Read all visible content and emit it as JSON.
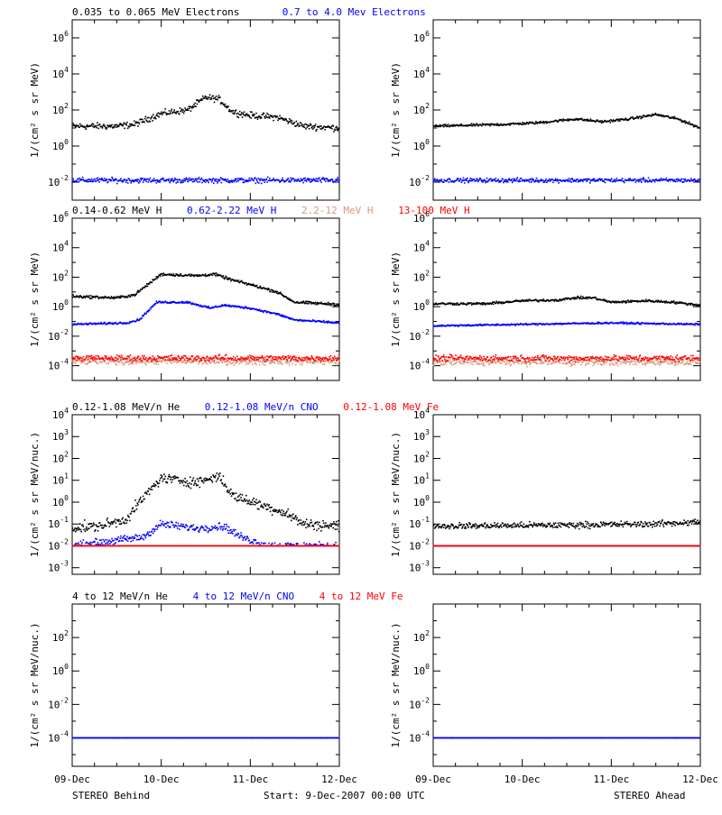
{
  "colors": {
    "black": "#000000",
    "blue": "#0000ff",
    "tan": "#d8987f",
    "red": "#ff0000"
  },
  "footer": {
    "left": "STEREO Behind",
    "center": "Start:  9-Dec-2007 00:00 UTC",
    "right": "STEREO Ahead"
  },
  "chart_data": [
    {
      "type": "scatter",
      "panel": "electrons-behind",
      "legend": [
        {
          "label": "0.035 to 0.065 MeV Electrons",
          "color": "#000000"
        },
        {
          "label": "0.7 to 4.0 Mev Electrons",
          "color": "#0000ff"
        }
      ],
      "ylabel": "1/(cm² s sr MeV)",
      "yscale": "log",
      "ylim": [
        0.001,
        10000000
      ],
      "ytick_exponents": [
        -2,
        0,
        2,
        4,
        6
      ],
      "x_ticks": [
        "09-Dec",
        "10-Dec",
        "11-Dec",
        "12-Dec"
      ],
      "x_range_days": [
        0,
        3
      ],
      "series": [
        {
          "name": "0.035 to 0.065 MeV Electrons",
          "color": "#000000",
          "x_days": [
            0,
            0.5,
            0.7,
            1.0,
            1.3,
            1.5,
            1.65,
            1.8,
            2.0,
            2.3,
            2.6,
            3.0
          ],
          "log10_y": [
            1.1,
            1.1,
            1.2,
            1.8,
            2.0,
            2.7,
            2.6,
            1.9,
            1.7,
            1.6,
            1.1,
            1.0
          ],
          "scatter": 0.15
        },
        {
          "name": "0.7 to 4.0 Mev Electrons",
          "color": "#0000ff",
          "x_days": [
            0,
            3
          ],
          "log10_y": [
            -1.9,
            -1.9
          ],
          "scatter": 0.12
        }
      ]
    },
    {
      "type": "scatter",
      "panel": "electrons-ahead",
      "ylabel": "1/(cm² s sr MeV)",
      "yscale": "log",
      "ylim": [
        0.001,
        10000000
      ],
      "ytick_exponents": [
        -2,
        0,
        2,
        4,
        6
      ],
      "x_ticks": [
        "09-Dec",
        "10-Dec",
        "11-Dec",
        "12-Dec"
      ],
      "x_range_days": [
        0,
        3
      ],
      "series": [
        {
          "name": "0.035 to 0.065 MeV Electrons",
          "color": "#000000",
          "x_days": [
            0,
            0.8,
            1.2,
            1.6,
            1.9,
            2.2,
            2.5,
            2.75,
            3.0
          ],
          "log10_y": [
            1.1,
            1.2,
            1.3,
            1.5,
            1.35,
            1.5,
            1.75,
            1.5,
            1.0
          ],
          "scatter": 0.06
        },
        {
          "name": "0.7 to 4.0 Mev Electrons",
          "color": "#0000ff",
          "x_days": [
            0,
            3
          ],
          "log10_y": [
            -1.9,
            -1.9
          ],
          "scatter": 0.1
        }
      ]
    },
    {
      "type": "scatter",
      "panel": "protons-behind",
      "legend": [
        {
          "label": "0.14-0.62 MeV H",
          "color": "#000000"
        },
        {
          "label": "0.62-2.22 MeV H",
          "color": "#0000ff"
        },
        {
          "label": "2.2-12 MeV H",
          "color": "#d8987f"
        },
        {
          "label": "13-100 MeV H",
          "color": "#ff0000"
        }
      ],
      "ylabel": "1/(cm² s sr MeV)",
      "yscale": "log",
      "ylim": [
        1e-05,
        1000000
      ],
      "ytick_exponents": [
        -4,
        -2,
        0,
        2,
        4,
        6
      ],
      "x_ticks": [
        "09-Dec",
        "10-Dec",
        "11-Dec",
        "12-Dec"
      ],
      "x_range_days": [
        0,
        3
      ],
      "series": [
        {
          "name": "0.14-0.62 MeV H",
          "color": "#000000",
          "x_days": [
            0,
            0.5,
            0.7,
            1.0,
            1.4,
            1.6,
            1.8,
            2.0,
            2.3,
            2.5,
            3.0
          ],
          "log10_y": [
            0.7,
            0.6,
            0.8,
            2.2,
            2.1,
            2.2,
            1.8,
            1.5,
            1.0,
            0.3,
            0.15
          ],
          "scatter": 0.08
        },
        {
          "name": "0.62-2.22 MeV H",
          "color": "#0000ff",
          "x_days": [
            0,
            0.6,
            0.75,
            0.95,
            1.3,
            1.55,
            1.7,
            2.0,
            2.3,
            2.5,
            3.0
          ],
          "log10_y": [
            -1.2,
            -1.1,
            -0.9,
            0.3,
            0.3,
            -0.1,
            0.1,
            -0.1,
            -0.5,
            -0.9,
            -1.1
          ],
          "scatter": 0.06
        },
        {
          "name": "2.2-12 MeV H",
          "color": "#d8987f",
          "x_days": [
            0,
            3
          ],
          "log10_y": [
            -3.7,
            -3.7
          ],
          "scatter": 0.2
        },
        {
          "name": "13-100 MeV H",
          "color": "#ff0000",
          "x_days": [
            0,
            3
          ],
          "log10_y": [
            -3.5,
            -3.5
          ],
          "scatter": 0.18
        }
      ]
    },
    {
      "type": "scatter",
      "panel": "protons-ahead",
      "ylabel": "1/(cm² s sr MeV)",
      "yscale": "log",
      "ylim": [
        1e-05,
        1000000
      ],
      "ytick_exponents": [
        -4,
        -2,
        0,
        2,
        4,
        6
      ],
      "x_ticks": [
        "09-Dec",
        "10-Dec",
        "11-Dec",
        "12-Dec"
      ],
      "x_range_days": [
        0,
        3
      ],
      "series": [
        {
          "name": "0.14-0.62 MeV H",
          "color": "#000000",
          "x_days": [
            0,
            0.6,
            1.0,
            1.4,
            1.6,
            1.8,
            2.0,
            2.4,
            2.7,
            3.0
          ],
          "log10_y": [
            0.2,
            0.2,
            0.4,
            0.45,
            0.6,
            0.6,
            0.3,
            0.4,
            0.3,
            0.1
          ],
          "scatter": 0.07
        },
        {
          "name": "0.62-2.22 MeV H",
          "color": "#0000ff",
          "x_days": [
            0,
            1.0,
            2.0,
            3.0
          ],
          "log10_y": [
            -1.3,
            -1.2,
            -1.1,
            -1.2
          ],
          "scatter": 0.05
        },
        {
          "name": "2.2-12 MeV H",
          "color": "#d8987f",
          "x_days": [
            0,
            3
          ],
          "log10_y": [
            -3.75,
            -3.75
          ],
          "scatter": 0.2
        },
        {
          "name": "13-100 MeV H",
          "color": "#ff0000",
          "x_days": [
            0,
            3
          ],
          "log10_y": [
            -3.5,
            -3.5
          ],
          "scatter": 0.18
        }
      ]
    },
    {
      "type": "scatter",
      "panel": "ions-low-behind",
      "legend": [
        {
          "label": "0.12-1.08 MeV/n He",
          "color": "#000000"
        },
        {
          "label": "0.12-1.08 MeV/n CNO",
          "color": "#0000ff"
        },
        {
          "label": "0.12-1.08 MeV Fe",
          "color": "#ff0000"
        }
      ],
      "ylabel": "1/(cm² s sr MeV/nuc.)",
      "yscale": "log",
      "ylim": [
        0.0005,
        10000
      ],
      "ytick_exponents": [
        -3,
        -2,
        -1,
        0,
        1,
        2,
        3,
        4
      ],
      "x_ticks": [
        "09-Dec",
        "10-Dec",
        "11-Dec",
        "12-Dec"
      ],
      "x_range_days": [
        0,
        3
      ],
      "series": [
        {
          "name": "0.12-1.08 MeV/n He",
          "color": "#000000",
          "x_days": [
            0,
            0.3,
            0.6,
            0.8,
            1.0,
            1.4,
            1.65,
            1.8,
            2.1,
            2.4,
            2.6,
            3.0
          ],
          "log10_y": [
            -1.2,
            -1.1,
            -0.8,
            0.2,
            1.1,
            0.9,
            1.2,
            0.3,
            -0.1,
            -0.5,
            -1.0,
            -1.1
          ],
          "scatter": 0.2,
          "floor_log10": -1.35
        },
        {
          "name": "0.12-1.08 MeV/n CNO",
          "color": "#0000ff",
          "x_days": [
            0,
            0.8,
            1.0,
            1.4,
            1.7,
            1.9,
            2.2,
            3.0
          ],
          "log10_y": [
            -2.0,
            -1.6,
            -1.0,
            -1.2,
            -1.1,
            -1.6,
            -2.0,
            -2.0
          ],
          "scatter": 0.15,
          "floor_log10": -2.0
        },
        {
          "name": "0.12-1.08 MeV Fe",
          "color": "#ff0000",
          "x_days": [
            0,
            3
          ],
          "log10_y": [
            -2.0,
            -2.0
          ],
          "scatter": 0.0,
          "floor_log10": -2.0
        }
      ]
    },
    {
      "type": "scatter",
      "panel": "ions-low-ahead",
      "ylabel": "1/(cm² s sr MeV/nuc.)",
      "yscale": "log",
      "ylim": [
        0.0005,
        10000
      ],
      "ytick_exponents": [
        -3,
        -2,
        -1,
        0,
        1,
        2,
        3,
        4
      ],
      "x_ticks": [
        "09-Dec",
        "10-Dec",
        "11-Dec",
        "12-Dec"
      ],
      "x_range_days": [
        0,
        3
      ],
      "series": [
        {
          "name": "0.12-1.08 MeV/n He",
          "color": "#000000",
          "x_days": [
            0,
            1.5,
            2.5,
            3.0
          ],
          "log10_y": [
            -1.1,
            -1.05,
            -1.0,
            -0.9
          ],
          "scatter": 0.12,
          "floor_log10": -1.35
        },
        {
          "name": "0.12-1.08 MeV/n CNO",
          "color": "#0000ff",
          "x_days": [
            0,
            3
          ],
          "log10_y": [
            -2.0,
            -2.0
          ],
          "scatter": 0.0,
          "floor_log10": -2.0
        },
        {
          "name": "0.12-1.08 MeV Fe",
          "color": "#ff0000",
          "x_days": [
            0,
            3
          ],
          "log10_y": [
            -2.0,
            -2.0
          ],
          "scatter": 0.0,
          "floor_log10": -2.0
        }
      ]
    },
    {
      "type": "scatter",
      "panel": "ions-high-behind",
      "legend": [
        {
          "label": "4 to 12 MeV/n He",
          "color": "#000000"
        },
        {
          "label": "4 to 12 MeV/n CNO",
          "color": "#0000ff"
        },
        {
          "label": "4 to 12 MeV Fe",
          "color": "#ff0000"
        }
      ],
      "ylabel": "1/(cm² s sr MeV/nuc.)",
      "yscale": "log",
      "ylim": [
        2e-06,
        10000
      ],
      "ytick_exponents": [
        -4,
        -2,
        0,
        2
      ],
      "x_ticks": [
        "09-Dec",
        "10-Dec",
        "11-Dec",
        "12-Dec"
      ],
      "x_range_days": [
        0,
        3
      ],
      "series": [
        {
          "name": "4 to 12 MeV/n He",
          "color": "#000000",
          "x_days": [
            0,
            3
          ],
          "log10_y": [
            -4.0,
            -4.0
          ],
          "scatter": 0.0,
          "sparse": true
        },
        {
          "name": "4 to 12 MeV/n CNO",
          "color": "#0000ff",
          "x_days": [
            0,
            3
          ],
          "log10_y": [
            -4.0,
            -4.0
          ],
          "scatter": 0.0
        }
      ]
    },
    {
      "type": "scatter",
      "panel": "ions-high-ahead",
      "ylabel": "1/(cm² s sr MeV/nuc.)",
      "yscale": "log",
      "ylim": [
        2e-06,
        10000
      ],
      "ytick_exponents": [
        -4,
        -2,
        0,
        2
      ],
      "x_ticks": [
        "09-Dec",
        "10-Dec",
        "11-Dec",
        "12-Dec"
      ],
      "x_range_days": [
        0,
        3
      ],
      "series": [
        {
          "name": "4 to 12 MeV/n He",
          "color": "#000000",
          "x_days": [
            0,
            3
          ],
          "log10_y": [
            -4.0,
            -4.0
          ],
          "scatter": 0.0,
          "sparse": true
        },
        {
          "name": "4 to 12 MeV/n CNO",
          "color": "#0000ff",
          "x_days": [
            0,
            3
          ],
          "log10_y": [
            -4.0,
            -4.0
          ],
          "scatter": 0.0
        }
      ]
    }
  ]
}
